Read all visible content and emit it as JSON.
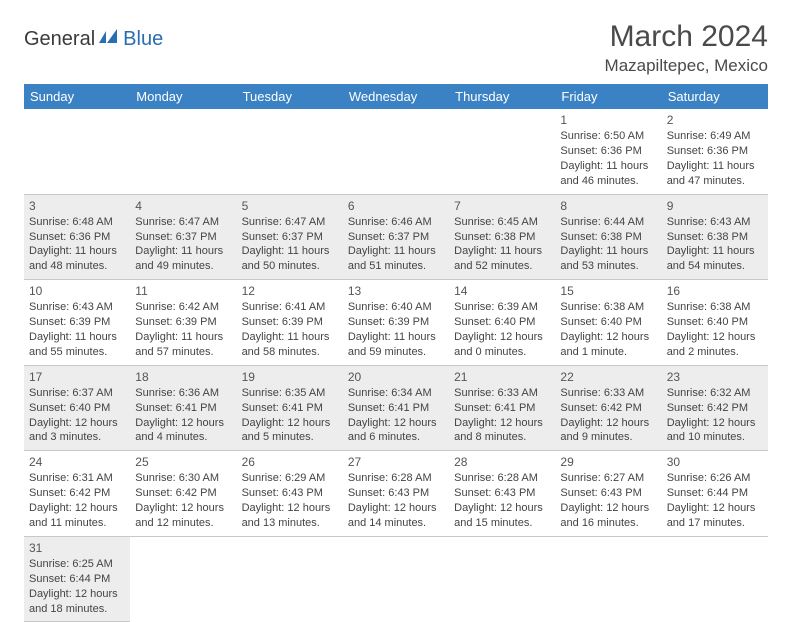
{
  "logo": {
    "general": "General",
    "blue": "Blue"
  },
  "title": "March 2024",
  "location": "Mazapiltepec, Mexico",
  "colors": {
    "header_bg": "#3b82c4",
    "header_text": "#ffffff",
    "row_alt": "#ededed",
    "border": "#c8c8c8",
    "logo_blue": "#2a6db0"
  },
  "weekdays": [
    "Sunday",
    "Monday",
    "Tuesday",
    "Wednesday",
    "Thursday",
    "Friday",
    "Saturday"
  ],
  "layout": {
    "first_weekday_index": 5,
    "days_in_month": 31
  },
  "days": {
    "1": {
      "sunrise": "6:50 AM",
      "sunset": "6:36 PM",
      "daylight": "11 hours and 46 minutes."
    },
    "2": {
      "sunrise": "6:49 AM",
      "sunset": "6:36 PM",
      "daylight": "11 hours and 47 minutes."
    },
    "3": {
      "sunrise": "6:48 AM",
      "sunset": "6:36 PM",
      "daylight": "11 hours and 48 minutes."
    },
    "4": {
      "sunrise": "6:47 AM",
      "sunset": "6:37 PM",
      "daylight": "11 hours and 49 minutes."
    },
    "5": {
      "sunrise": "6:47 AM",
      "sunset": "6:37 PM",
      "daylight": "11 hours and 50 minutes."
    },
    "6": {
      "sunrise": "6:46 AM",
      "sunset": "6:37 PM",
      "daylight": "11 hours and 51 minutes."
    },
    "7": {
      "sunrise": "6:45 AM",
      "sunset": "6:38 PM",
      "daylight": "11 hours and 52 minutes."
    },
    "8": {
      "sunrise": "6:44 AM",
      "sunset": "6:38 PM",
      "daylight": "11 hours and 53 minutes."
    },
    "9": {
      "sunrise": "6:43 AM",
      "sunset": "6:38 PM",
      "daylight": "11 hours and 54 minutes."
    },
    "10": {
      "sunrise": "6:43 AM",
      "sunset": "6:39 PM",
      "daylight": "11 hours and 55 minutes."
    },
    "11": {
      "sunrise": "6:42 AM",
      "sunset": "6:39 PM",
      "daylight": "11 hours and 57 minutes."
    },
    "12": {
      "sunrise": "6:41 AM",
      "sunset": "6:39 PM",
      "daylight": "11 hours and 58 minutes."
    },
    "13": {
      "sunrise": "6:40 AM",
      "sunset": "6:39 PM",
      "daylight": "11 hours and 59 minutes."
    },
    "14": {
      "sunrise": "6:39 AM",
      "sunset": "6:40 PM",
      "daylight": "12 hours and 0 minutes."
    },
    "15": {
      "sunrise": "6:38 AM",
      "sunset": "6:40 PM",
      "daylight": "12 hours and 1 minute."
    },
    "16": {
      "sunrise": "6:38 AM",
      "sunset": "6:40 PM",
      "daylight": "12 hours and 2 minutes."
    },
    "17": {
      "sunrise": "6:37 AM",
      "sunset": "6:40 PM",
      "daylight": "12 hours and 3 minutes."
    },
    "18": {
      "sunrise": "6:36 AM",
      "sunset": "6:41 PM",
      "daylight": "12 hours and 4 minutes."
    },
    "19": {
      "sunrise": "6:35 AM",
      "sunset": "6:41 PM",
      "daylight": "12 hours and 5 minutes."
    },
    "20": {
      "sunrise": "6:34 AM",
      "sunset": "6:41 PM",
      "daylight": "12 hours and 6 minutes."
    },
    "21": {
      "sunrise": "6:33 AM",
      "sunset": "6:41 PM",
      "daylight": "12 hours and 8 minutes."
    },
    "22": {
      "sunrise": "6:33 AM",
      "sunset": "6:42 PM",
      "daylight": "12 hours and 9 minutes."
    },
    "23": {
      "sunrise": "6:32 AM",
      "sunset": "6:42 PM",
      "daylight": "12 hours and 10 minutes."
    },
    "24": {
      "sunrise": "6:31 AM",
      "sunset": "6:42 PM",
      "daylight": "12 hours and 11 minutes."
    },
    "25": {
      "sunrise": "6:30 AM",
      "sunset": "6:42 PM",
      "daylight": "12 hours and 12 minutes."
    },
    "26": {
      "sunrise": "6:29 AM",
      "sunset": "6:43 PM",
      "daylight": "12 hours and 13 minutes."
    },
    "27": {
      "sunrise": "6:28 AM",
      "sunset": "6:43 PM",
      "daylight": "12 hours and 14 minutes."
    },
    "28": {
      "sunrise": "6:28 AM",
      "sunset": "6:43 PM",
      "daylight": "12 hours and 15 minutes."
    },
    "29": {
      "sunrise": "6:27 AM",
      "sunset": "6:43 PM",
      "daylight": "12 hours and 16 minutes."
    },
    "30": {
      "sunrise": "6:26 AM",
      "sunset": "6:44 PM",
      "daylight": "12 hours and 17 minutes."
    },
    "31": {
      "sunrise": "6:25 AM",
      "sunset": "6:44 PM",
      "daylight": "12 hours and 18 minutes."
    }
  },
  "labels": {
    "sunrise": "Sunrise: ",
    "sunset": "Sunset: ",
    "daylight": "Daylight: "
  }
}
